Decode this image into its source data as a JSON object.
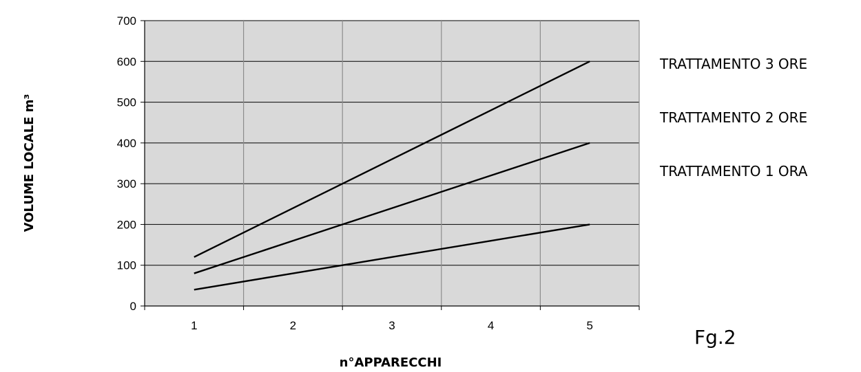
{
  "chart_data": {
    "type": "line",
    "x": [
      1,
      2,
      3,
      4,
      5
    ],
    "x_tick_labels": [
      "1",
      "2",
      "3",
      "4",
      "5"
    ],
    "ylim": [
      0,
      700
    ],
    "y_ticks": [
      0,
      100,
      200,
      300,
      400,
      500,
      600,
      700
    ],
    "xlabel": "n°APPAREC­CHI",
    "ylabel": "VOLUME LOCALE m³",
    "grid": true,
    "legend_position": "right",
    "series": [
      {
        "name": "TRATTAMENTO 3 ORE",
        "values": [
          120,
          240,
          360,
          480,
          600
        ],
        "color": "#000000"
      },
      {
        "name": "TRATTAMENTO 2 ORE",
        "values": [
          80,
          160,
          240,
          320,
          400
        ],
        "color": "#000000"
      },
      {
        "name": "TRATTAMENTO 1 ORA",
        "values": [
          40,
          80,
          120,
          160,
          200
        ],
        "color": "#000000"
      }
    ],
    "plot_background": "#d9d9d9"
  },
  "figure_label": "Fg.2"
}
